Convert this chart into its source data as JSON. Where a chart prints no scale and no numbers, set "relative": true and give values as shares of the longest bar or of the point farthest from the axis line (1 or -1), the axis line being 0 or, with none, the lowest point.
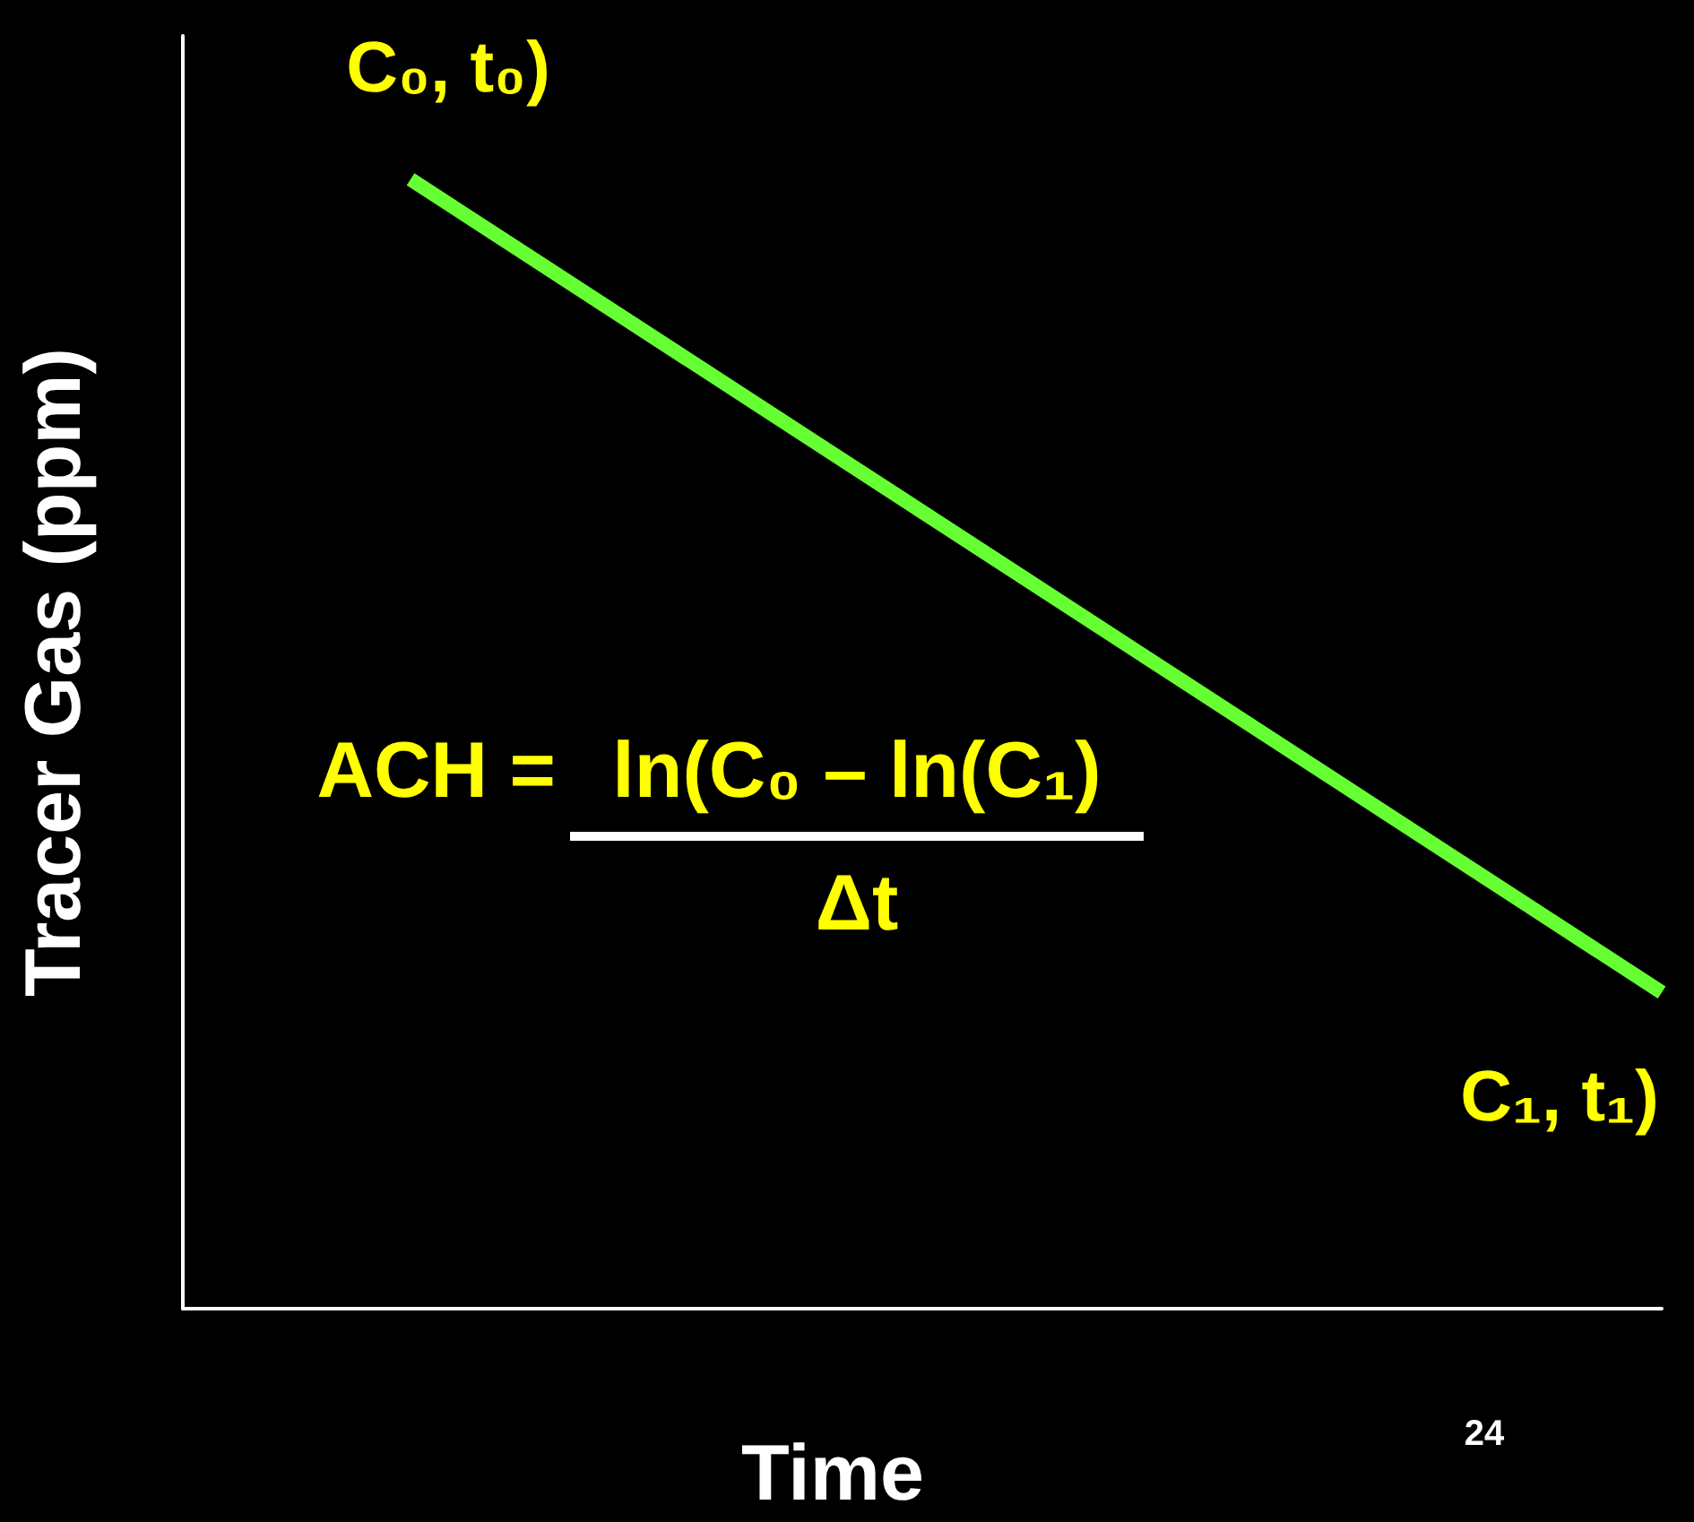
{
  "chart_data": {
    "type": "line",
    "xlabel": "Time",
    "ylabel": "Tracer Gas (ppm)",
    "categories": [
      null,
      null
    ],
    "relative": true,
    "series": [
      {
        "color": "#66ff33",
        "values": [
          1,
          0.28
        ]
      }
    ],
    "annotations": [
      "C₀, t₀)",
      "C₁, t₁)",
      "ACH =",
      "ln(C₀ – ln(C₁)",
      "Δt",
      "24"
    ],
    "grid": false,
    "marker": "none",
    "line_style": "solid"
  }
}
